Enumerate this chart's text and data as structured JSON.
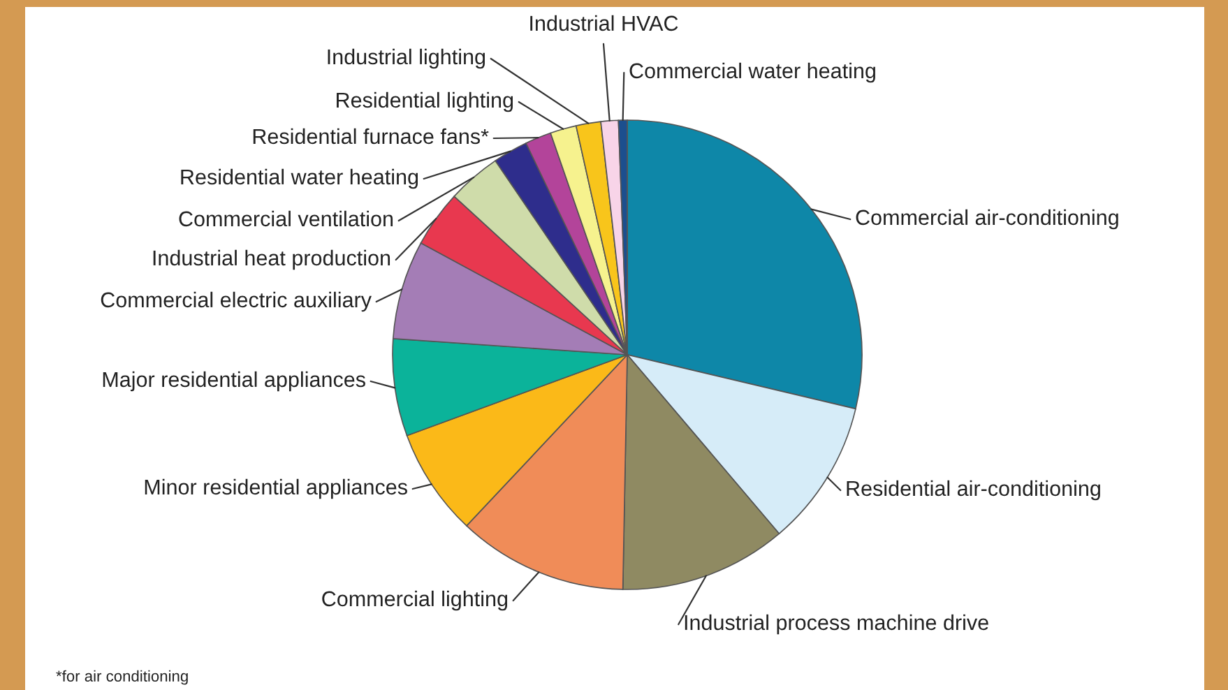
{
  "chart_data": {
    "type": "pie",
    "categories": [
      "Commercial air-conditioning",
      "Residential air-conditioning",
      "Industrial process machine drive",
      "Commercial lighting",
      "Minor residential appliances",
      "Major residential appliances",
      "Commercial electric auxiliary",
      "Industrial heat production",
      "Commercial ventilation",
      "Residential water heating",
      "Residential furnace fans*",
      "Residential lighting",
      "Industrial lighting",
      "Industrial HVAC",
      "Commercial water heating"
    ],
    "values": [
      28.7,
      10.1,
      11.5,
      11.7,
      7.4,
      6.7,
      6.8,
      3.9,
      3.7,
      2.4,
      1.8,
      1.8,
      1.7,
      1.2,
      0.6
    ],
    "colors": [
      "#0e87a8",
      "#d6ecf8",
      "#8f8a62",
      "#f08c58",
      "#fbb918",
      "#0bb39a",
      "#a47db6",
      "#e8384f",
      "#cfdcaa",
      "#2e2d8c",
      "#b3449a",
      "#f6f28e",
      "#f8c51b",
      "#f8d4e8",
      "#1c4f8e"
    ],
    "annotations": [
      "*for air conditioning"
    ]
  }
}
